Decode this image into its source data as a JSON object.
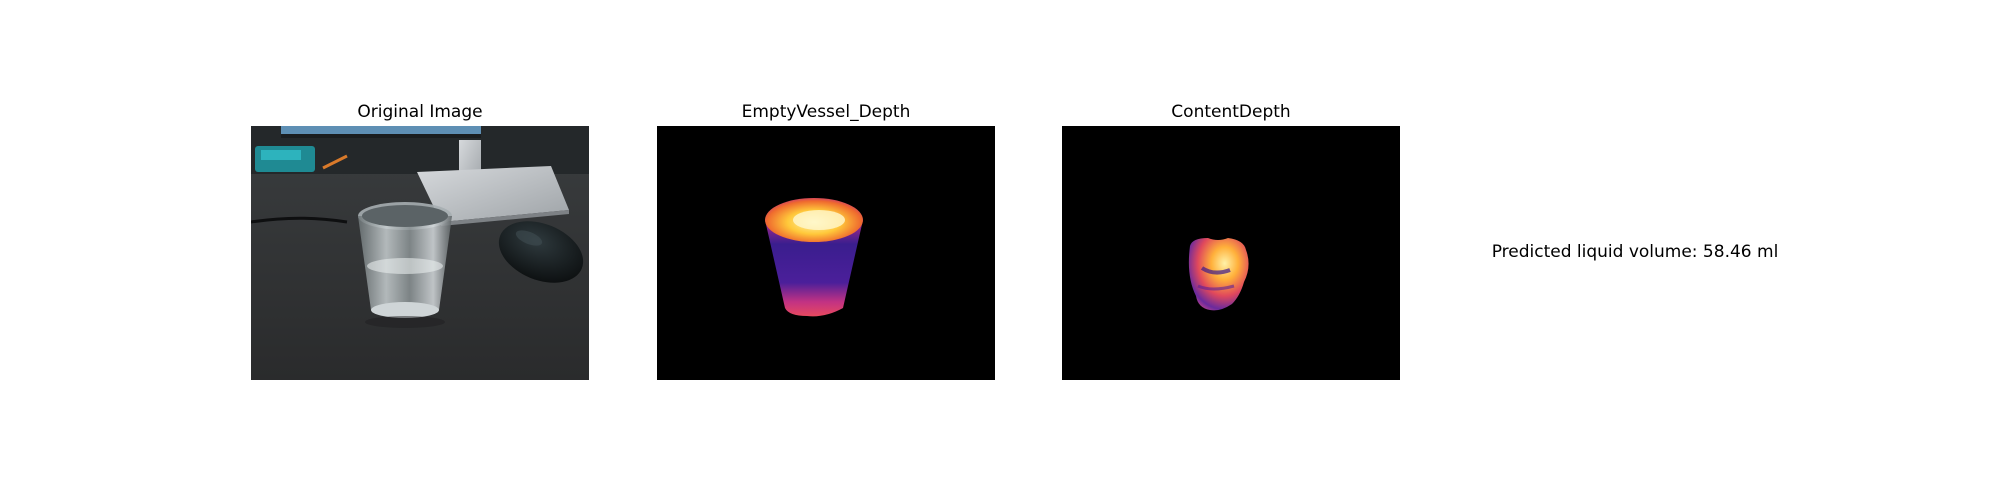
{
  "panels": [
    {
      "title": "Original Image"
    },
    {
      "title": "EmptyVessel_Depth"
    },
    {
      "title": "ContentDepth"
    }
  ],
  "result": {
    "text": "Predicted liquid volume: 58.46 ml"
  },
  "colors": {
    "background": "#ffffff",
    "depth_background": "#000000",
    "colormap_low": "#2a1a8a",
    "colormap_mid": "#d8358a",
    "colormap_high": "#fff2a0"
  }
}
